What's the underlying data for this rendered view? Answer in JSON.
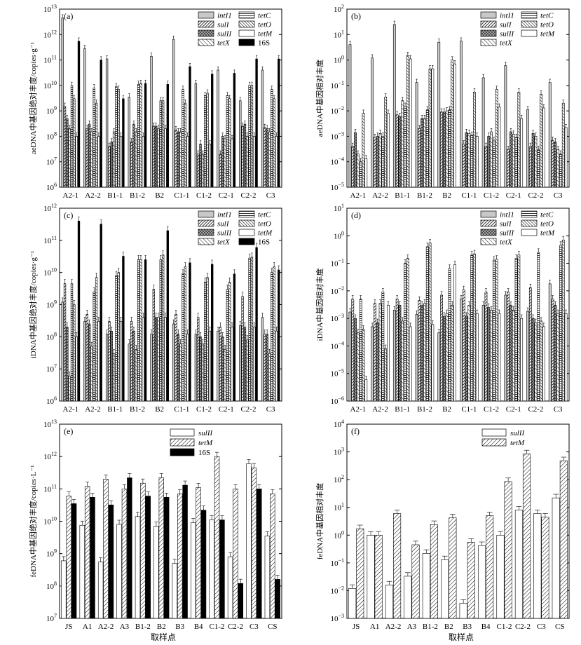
{
  "colors": {
    "intI1": "#c8c8c8",
    "black": "#000000",
    "white": "#ffffff"
  },
  "legend_sets": {
    "six": [
      {
        "name": "intI1",
        "pattern": "gray",
        "italic": true
      },
      {
        "name": "sulI",
        "pattern": "dense-diag",
        "italic": true
      },
      {
        "name": "sulII",
        "pattern": "crosshatch",
        "italic": true
      },
      {
        "name": "tetX",
        "pattern": "anti-diag",
        "italic": true
      },
      {
        "name": "tetC",
        "pattern": "horizontal",
        "italic": true
      },
      {
        "name": "tetO",
        "pattern": "back-diag",
        "italic": true
      },
      {
        "name": "tetM",
        "pattern": "white",
        "italic": true
      },
      {
        "name": "16S",
        "pattern": "black",
        "italic": false
      }
    ],
    "fe": [
      {
        "name": "sulII",
        "pattern": "white",
        "italic": true
      },
      {
        "name": "tetM",
        "pattern": "diag",
        "italic": true
      },
      {
        "name": "16S",
        "pattern": "black",
        "italic": false
      }
    ]
  },
  "xlabel_common": "取样点",
  "chart_data": [
    {
      "panel": "(a)",
      "type": "bar",
      "scale": "log",
      "ylabel": "aeDNA中基因绝对丰度/copies·g⁻¹",
      "ylim_exp": [
        6,
        13
      ],
      "categories": [
        "A2-1",
        "A2-2",
        "B1-1",
        "B1-2",
        "B2",
        "C1-1",
        "C1-2",
        "C2-1",
        "C2-2",
        "C3"
      ],
      "series": [
        {
          "name": "intI1",
          "values": [
            4500000000000.0,
            280000000000.0,
            110000000000.0,
            3500000000.0,
            140000000000.0,
            650000000000.0,
            12000000000.0,
            40000000000.0,
            2500000000.0,
            40000000000.0
          ]
        },
        {
          "name": "sulI",
          "values": [
            1500000000.0,
            200000000.0,
            40000000.0,
            60000000.0,
            250000000.0,
            180000000.0,
            20000000.0,
            20000000.0,
            250000000.0,
            220000000.0
          ]
        },
        {
          "name": "sulII",
          "values": [
            500000000.0,
            300000000.0,
            60000000.0,
            300000000.0,
            250000000.0,
            150000000.0,
            50000000.0,
            100000000.0,
            300000000.0,
            200000000.0
          ]
        },
        {
          "name": "tetX",
          "values": [
            200000000.0,
            150000000.0,
            150000000.0,
            150000000.0,
            200000000.0,
            150000000.0,
            20000000.0,
            80000000.0,
            100000000.0,
            150000000.0
          ]
        },
        {
          "name": "tetC",
          "values": [
            10000000000.0,
            8000000000.0,
            9000000000.0,
            11000000000.0,
            2500000000.0,
            7000000000.0,
            4000000000.0,
            4000000000.0,
            10000000000.0,
            7000000000.0
          ]
        },
        {
          "name": "tetO",
          "values": [
            3000000000.0,
            2000000000.0,
            7000000000.0,
            12000000000.0,
            2500000000.0,
            2000000000.0,
            5000000000.0,
            3000000000.0,
            10000000000.0,
            3000000000.0
          ]
        },
        {
          "name": "tetM",
          "values": [
            100000000.0,
            100000000.0,
            100000000.0,
            100000000.0,
            200000000.0,
            100000000.0,
            50000000.0,
            80000000.0,
            100000000.0,
            100000000.0
          ]
        },
        {
          "name": "16S",
          "values": [
            550000000000.0,
            100000000000.0,
            3000000000.0,
            12000000000.0,
            11000000000.0,
            55000000000.0,
            28000000000.0,
            30000000000.0,
            110000000000.0,
            110000000000.0
          ]
        }
      ]
    },
    {
      "panel": "(b)",
      "type": "bar",
      "scale": "log",
      "ylabel": "aeDNA中基因相对丰度",
      "ylim_exp": [
        -5,
        2
      ],
      "categories": [
        "A2-1",
        "A2-2",
        "B1-1",
        "B1-2",
        "B2",
        "C1-1",
        "C1-2",
        "C2-1",
        "C2-2",
        "C3"
      ],
      "series": [
        {
          "name": "intI1",
          "values": [
            4,
            1.2,
            25,
            0.13,
            5,
            5.5,
            0.2,
            0.6,
            0.011,
            0.13
          ]
        },
        {
          "name": "sulI",
          "values": [
            0.0004,
            0.0009,
            0.007,
            0.002,
            0.009,
            0.0005,
            0.0004,
            0.0003,
            0.0004,
            0.0007
          ]
        },
        {
          "name": "sulII",
          "values": [
            0.0014,
            0.001,
            0.006,
            0.005,
            0.009,
            0.0014,
            0.001,
            0.0015,
            0.0013,
            0.0006
          ]
        },
        {
          "name": "tetX",
          "values": [
            0.0002,
            0.0013,
            0.025,
            0.005,
            0.01,
            0.0013,
            0.0015,
            0.0012,
            0.001,
            0.0003
          ]
        },
        {
          "name": "tetC",
          "values": [
            0.0001,
            0.001,
            0.015,
            0.011,
            0.011,
            0.0011,
            0.0007,
            0.0009,
            0.0003,
            0.0002
          ]
        },
        {
          "name": "tetO",
          "values": [
            0.008,
            0.035,
            1.5,
            0.45,
            1.0,
            0.055,
            0.07,
            0.055,
            0.045,
            0.02
          ]
        },
        {
          "name": "tetM",
          "values": [
            0.00013,
            0.008,
            1.1,
            0.45,
            0.7,
            0.001,
            0.014,
            0.005,
            0.013,
            0.0022
          ]
        }
      ]
    },
    {
      "panel": "(c)",
      "type": "bar",
      "scale": "log",
      "ylabel": "iDNA中基因绝对丰度/copies·g⁻¹",
      "ylim_exp": [
        6,
        12
      ],
      "categories": [
        "A2-1",
        "A2-2",
        "B1-1",
        "B1-2",
        "B2",
        "C1-1",
        "C1-2",
        "C2-1",
        "C2-2",
        "C3"
      ],
      "series": [
        {
          "name": "intI1",
          "values": [
            1200000000.0,
            300000000.0,
            120000000.0,
            60000000.0,
            120000000.0,
            250000000.0,
            120000000.0,
            150000000.0,
            220000000.0,
            400000000.0
          ]
        },
        {
          "name": "sulI",
          "values": [
            4500000000.0,
            500000000.0,
            300000000.0,
            300000000.0,
            3000000000.0,
            500000000.0,
            400000000.0,
            200000000.0,
            1800000000.0,
            120000000.0
          ]
        },
        {
          "name": "sulII",
          "values": [
            200000000.0,
            250000000.0,
            150000000.0,
            150000000.0,
            400000000.0,
            120000000.0,
            100000000.0,
            100000000.0,
            200000000.0,
            120000000.0
          ]
        },
        {
          "name": "tetX",
          "values": [
            6000000.0,
            50000000.0,
            30000000.0,
            40000000.0,
            400000000.0,
            60000000.0,
            60000000.0,
            40000000.0,
            80000000.0,
            30000000.0
          ]
        },
        {
          "name": "tetC",
          "values": [
            4500000000.0,
            2500000000.0,
            8000000000.0,
            25000000000.0,
            25000000000.0,
            9000000000.0,
            5000000000.0,
            3000000000.0,
            28000000000.0,
            10000000000.0
          ]
        },
        {
          "name": "tetO",
          "values": [
            1000000000.0,
            7000000000.0,
            10000000000.0,
            25000000000.0,
            35000000000.0,
            15000000000.0,
            7000000000.0,
            5000000000.0,
            30000000000.0,
            15000000000.0
          ]
        },
        {
          "name": "tetM",
          "values": [
            100000000.0,
            300000000.0,
            300000000.0,
            400000000.0,
            400000000.0,
            120000000.0,
            150000000.0,
            200000000.0,
            200000000.0,
            150000000.0
          ]
        },
        {
          "name": "16S",
          "values": [
            400000000000.0,
            320000000000.0,
            32000000000.0,
            25000000000.0,
            200000000000.0,
            20000000000.0,
            18000000000.0,
            9000000000.0,
            60000000000.0,
            12000000000.0
          ]
        }
      ]
    },
    {
      "panel": "(d)",
      "type": "bar",
      "scale": "log",
      "ylabel": "iDNA中基因相对丰度",
      "ylim_exp": [
        -6,
        1
      ],
      "categories": [
        "A2-1",
        "A2-2",
        "B1-1",
        "B1-2",
        "B2",
        "C1-1",
        "C1-2",
        "C2-1",
        "C2-2",
        "C3"
      ],
      "series": [
        {
          "name": "intI1",
          "values": [
            0.0017,
            0.0005,
            0.002,
            0.0014,
            0.0003,
            0.005,
            0.003,
            0.007,
            0.0018,
            0.018
          ]
        },
        {
          "name": "sulI",
          "values": [
            0.005,
            0.0035,
            0.005,
            0.0045,
            0.007,
            0.011,
            0.009,
            0.009,
            0.013,
            0.005
          ]
        },
        {
          "name": "sulII",
          "values": [
            0.001,
            0.0007,
            0.003,
            0.003,
            0.0012,
            0.0012,
            0.0025,
            0.003,
            0.001,
            0.003
          ]
        },
        {
          "name": "tetX",
          "values": [
            0.0003,
            0.0035,
            0.0008,
            0.0035,
            0.0015,
            0.003,
            0.002,
            0.002,
            0.0007,
            0.0015
          ]
        },
        {
          "name": "tetC",
          "values": [
            0.005,
            0.009,
            0.1,
            0.4,
            0.065,
            0.2,
            0.13,
            0.15,
            0.25,
            0.45
          ]
        },
        {
          "name": "tetO",
          "values": [
            0.0004,
            8e-05,
            0.15,
            0.55,
            0.003,
            0.22,
            0.14,
            0.2,
            0.0008,
            0.7
          ]
        },
        {
          "name": "tetM",
          "values": [
            6e-06,
            0.003,
            0.0005,
            0.0006,
            0.09,
            0.0015,
            0.0015,
            0.001,
            0.0005,
            0.0015
          ]
        }
      ]
    },
    {
      "panel": "(e)",
      "type": "bar",
      "scale": "log",
      "ylabel": "feDNA中基因绝对丰度/copies·L⁻¹",
      "ylim_exp": [
        7,
        13
      ],
      "categories": [
        "JS",
        "A1",
        "A2-2",
        "A3",
        "B1-2",
        "B2",
        "B3",
        "B4",
        "C1-2",
        "C2-2",
        "C3",
        "CS"
      ],
      "series": [
        {
          "name": "sulII",
          "values": [
            600000000.0,
            7500000000.0,
            550000000.0,
            8000000000.0,
            14000000000.0,
            7000000000.0,
            500000000.0,
            9000000000.0,
            11000000000.0,
            800000000.0,
            600000000000.0,
            3500000000.0
          ]
        },
        {
          "name": "tetM",
          "values": [
            60000000000.0,
            120000000000.0,
            200000000000.0,
            100000000000.0,
            150000000000.0,
            220000000000.0,
            70000000000.0,
            110000000000.0,
            1000000000000.0,
            100000000000.0,
            450000000000.0,
            70000000000.0
          ]
        },
        {
          "name": "16S",
          "values": [
            35000000000.0,
            55000000000.0,
            32000000000.0,
            220000000000.0,
            60000000000.0,
            55000000000.0,
            130000000000.0,
            22000000000.0,
            11000000000.0,
            120000000.0,
            100000000000.0,
            160000000.0
          ]
        }
      ]
    },
    {
      "panel": "(f)",
      "type": "bar",
      "scale": "log",
      "ylabel": "feDNA中基因相对丰度",
      "ylim_exp": [
        -3,
        4
      ],
      "categories": [
        "JS",
        "A1",
        "A2-2",
        "A3",
        "B1-2",
        "B2",
        "B3",
        "B4",
        "C1-2",
        "C2-2",
        "C3",
        "CS"
      ],
      "series": [
        {
          "name": "sulII",
          "values": [
            0.012,
            1.0,
            0.016,
            0.033,
            0.22,
            0.13,
            0.0035,
            0.42,
            1.0,
            8,
            6,
            22
          ]
        },
        {
          "name": "tetM",
          "values": [
            1.7,
            1.0,
            6,
            0.45,
            2.4,
            4.2,
            0.55,
            5,
            85,
            850,
            4.5,
            480
          ]
        }
      ]
    }
  ]
}
